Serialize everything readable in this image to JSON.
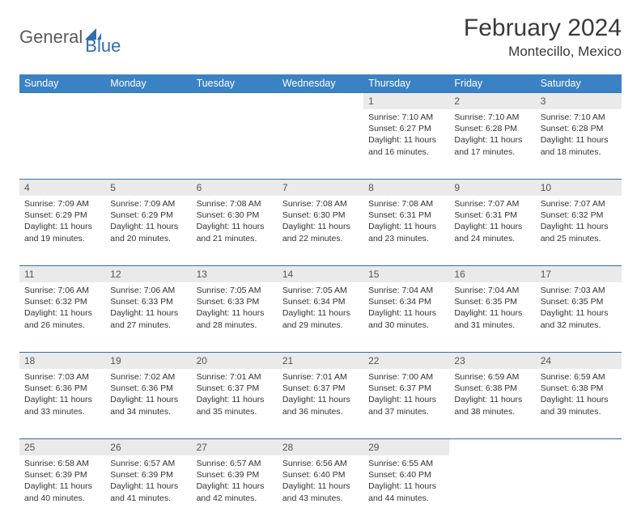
{
  "brand": {
    "part1": "General",
    "part2": "Blue"
  },
  "title": "February 2024",
  "location": "Montecillo, Mexico",
  "colors": {
    "header_bg": "#3a82c4",
    "accent": "#2f6fb0",
    "daynum_bg": "#eaeaea",
    "text": "#333333"
  },
  "weekdays": [
    "Sunday",
    "Monday",
    "Tuesday",
    "Wednesday",
    "Thursday",
    "Friday",
    "Saturday"
  ],
  "weeks": [
    [
      null,
      null,
      null,
      null,
      {
        "n": "1",
        "sr": "7:10 AM",
        "ss": "6:27 PM",
        "dh": "11",
        "dm": "16"
      },
      {
        "n": "2",
        "sr": "7:10 AM",
        "ss": "6:28 PM",
        "dh": "11",
        "dm": "17"
      },
      {
        "n": "3",
        "sr": "7:10 AM",
        "ss": "6:28 PM",
        "dh": "11",
        "dm": "18"
      }
    ],
    [
      {
        "n": "4",
        "sr": "7:09 AM",
        "ss": "6:29 PM",
        "dh": "11",
        "dm": "19"
      },
      {
        "n": "5",
        "sr": "7:09 AM",
        "ss": "6:29 PM",
        "dh": "11",
        "dm": "20"
      },
      {
        "n": "6",
        "sr": "7:08 AM",
        "ss": "6:30 PM",
        "dh": "11",
        "dm": "21"
      },
      {
        "n": "7",
        "sr": "7:08 AM",
        "ss": "6:30 PM",
        "dh": "11",
        "dm": "22"
      },
      {
        "n": "8",
        "sr": "7:08 AM",
        "ss": "6:31 PM",
        "dh": "11",
        "dm": "23"
      },
      {
        "n": "9",
        "sr": "7:07 AM",
        "ss": "6:31 PM",
        "dh": "11",
        "dm": "24"
      },
      {
        "n": "10",
        "sr": "7:07 AM",
        "ss": "6:32 PM",
        "dh": "11",
        "dm": "25"
      }
    ],
    [
      {
        "n": "11",
        "sr": "7:06 AM",
        "ss": "6:32 PM",
        "dh": "11",
        "dm": "26"
      },
      {
        "n": "12",
        "sr": "7:06 AM",
        "ss": "6:33 PM",
        "dh": "11",
        "dm": "27"
      },
      {
        "n": "13",
        "sr": "7:05 AM",
        "ss": "6:33 PM",
        "dh": "11",
        "dm": "28"
      },
      {
        "n": "14",
        "sr": "7:05 AM",
        "ss": "6:34 PM",
        "dh": "11",
        "dm": "29"
      },
      {
        "n": "15",
        "sr": "7:04 AM",
        "ss": "6:34 PM",
        "dh": "11",
        "dm": "30"
      },
      {
        "n": "16",
        "sr": "7:04 AM",
        "ss": "6:35 PM",
        "dh": "11",
        "dm": "31"
      },
      {
        "n": "17",
        "sr": "7:03 AM",
        "ss": "6:35 PM",
        "dh": "11",
        "dm": "32"
      }
    ],
    [
      {
        "n": "18",
        "sr": "7:03 AM",
        "ss": "6:36 PM",
        "dh": "11",
        "dm": "33"
      },
      {
        "n": "19",
        "sr": "7:02 AM",
        "ss": "6:36 PM",
        "dh": "11",
        "dm": "34"
      },
      {
        "n": "20",
        "sr": "7:01 AM",
        "ss": "6:37 PM",
        "dh": "11",
        "dm": "35"
      },
      {
        "n": "21",
        "sr": "7:01 AM",
        "ss": "6:37 PM",
        "dh": "11",
        "dm": "36"
      },
      {
        "n": "22",
        "sr": "7:00 AM",
        "ss": "6:37 PM",
        "dh": "11",
        "dm": "37"
      },
      {
        "n": "23",
        "sr": "6:59 AM",
        "ss": "6:38 PM",
        "dh": "11",
        "dm": "38"
      },
      {
        "n": "24",
        "sr": "6:59 AM",
        "ss": "6:38 PM",
        "dh": "11",
        "dm": "39"
      }
    ],
    [
      {
        "n": "25",
        "sr": "6:58 AM",
        "ss": "6:39 PM",
        "dh": "11",
        "dm": "40"
      },
      {
        "n": "26",
        "sr": "6:57 AM",
        "ss": "6:39 PM",
        "dh": "11",
        "dm": "41"
      },
      {
        "n": "27",
        "sr": "6:57 AM",
        "ss": "6:39 PM",
        "dh": "11",
        "dm": "42"
      },
      {
        "n": "28",
        "sr": "6:56 AM",
        "ss": "6:40 PM",
        "dh": "11",
        "dm": "43"
      },
      {
        "n": "29",
        "sr": "6:55 AM",
        "ss": "6:40 PM",
        "dh": "11",
        "dm": "44"
      },
      null,
      null
    ]
  ],
  "labels": {
    "sunrise": "Sunrise:",
    "sunset": "Sunset:",
    "daylight": "Daylight:",
    "hours": "hours",
    "and": "and",
    "minutes": "minutes."
  }
}
